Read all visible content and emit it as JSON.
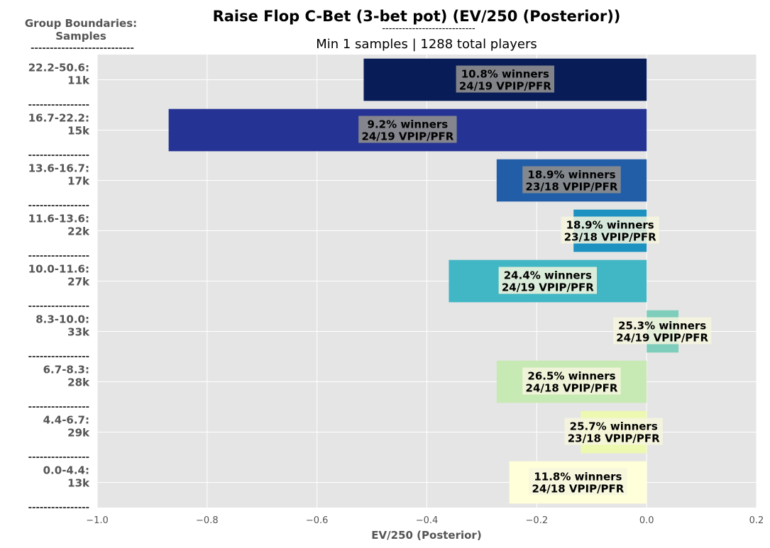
{
  "chart_data": {
    "type": "bar",
    "orientation": "horizontal",
    "title": "Raise Flop C-Bet (3-bet pot) (EV/250 (Posterior))",
    "title_rule": "----------------------------",
    "subtitle": "Min 1 samples | 1288 total players",
    "corner_label_line1": "Group Boundaries:",
    "corner_label_line2": "Samples",
    "corner_rule": "---------------------------",
    "group_separator": "----------------",
    "xlabel": "EV/250 (Posterior)",
    "xlim": [
      -1.0,
      0.2
    ],
    "x_ticks": [
      "−1.0",
      "−0.8",
      "−0.6",
      "−0.4",
      "−0.2",
      "0.0",
      "0.2"
    ],
    "grid": true,
    "categories": [
      {
        "range": "22.2-50.6:",
        "samples": "11k",
        "value": -0.515,
        "winners": "10.8% winners",
        "vpip_pfr": "24/19 VPIP/PFR",
        "color": "#081d58"
      },
      {
        "range": "16.7-22.2:",
        "samples": "15k",
        "value": -0.87,
        "winners": "9.2% winners",
        "vpip_pfr": "24/19 VPIP/PFR",
        "color": "#253494"
      },
      {
        "range": "13.6-16.7:",
        "samples": "17k",
        "value": -0.273,
        "winners": "18.9% winners",
        "vpip_pfr": "23/18 VPIP/PFR",
        "color": "#225ea8"
      },
      {
        "range": "11.6-13.6:",
        "samples": "22k",
        "value": -0.133,
        "winners": "18.9% winners",
        "vpip_pfr": "23/18 VPIP/PFR",
        "color": "#1d91c0"
      },
      {
        "range": "10.0-11.6:",
        "samples": "27k",
        "value": -0.36,
        "winners": "24.4% winners",
        "vpip_pfr": "24/19 VPIP/PFR",
        "color": "#41b6c4"
      },
      {
        "range": "8.3-10.0:",
        "samples": "33k",
        "value": 0.058,
        "winners": "25.3% winners",
        "vpip_pfr": "24/19 VPIP/PFR",
        "color": "#7fcdbb"
      },
      {
        "range": "6.7-8.3:",
        "samples": "28k",
        "value": -0.273,
        "winners": "26.5% winners",
        "vpip_pfr": "24/18 VPIP/PFR",
        "color": "#c7e9b4"
      },
      {
        "range": "4.4-6.7:",
        "samples": "29k",
        "value": -0.12,
        "winners": "25.7% winners",
        "vpip_pfr": "23/18 VPIP/PFR",
        "color": "#edf8b1"
      },
      {
        "range": "0.0-4.4:",
        "samples": "13k",
        "value": -0.25,
        "winners": "11.8% winners",
        "vpip_pfr": "24/18 VPIP/PFR",
        "color": "#ffffd9"
      }
    ],
    "colors": {
      "background": "#e5e5e5",
      "grid": "#ffffff",
      "label_text": "#555555",
      "label_box_dark": "#8c8c8c",
      "label_box_light": "#f6f6de"
    }
  }
}
